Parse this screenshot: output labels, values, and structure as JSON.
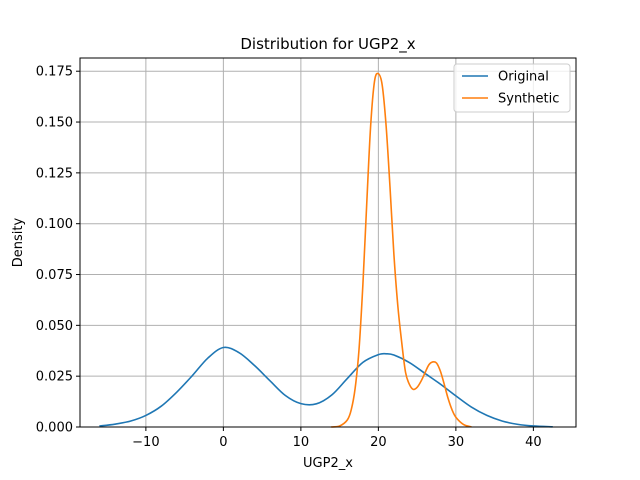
{
  "chart_data": {
    "type": "line",
    "title": "Distribution for UGP2_x",
    "xlabel": "UGP2_x",
    "ylabel": "Density",
    "xlim": [
      -18.5,
      45.5
    ],
    "ylim": [
      0,
      0.1815
    ],
    "xticks": [
      -10,
      0,
      10,
      20,
      30,
      40
    ],
    "xtick_labels": [
      "−10",
      "0",
      "10",
      "20",
      "30",
      "40"
    ],
    "yticks": [
      0.0,
      0.025,
      0.05,
      0.075,
      0.1,
      0.125,
      0.15,
      0.175
    ],
    "ytick_labels": [
      "0.000",
      "0.025",
      "0.050",
      "0.075",
      "0.100",
      "0.125",
      "0.150",
      "0.175"
    ],
    "grid": true,
    "legend_position": "top-right",
    "series": [
      {
        "name": "Original",
        "color": "#1f77b4",
        "x": [
          -16,
          -14,
          -12,
          -10,
          -8,
          -6,
          -4,
          -2,
          0,
          2,
          4,
          6,
          8,
          10,
          12,
          14,
          16,
          18,
          20,
          21,
          22,
          24,
          26,
          28,
          30,
          32,
          34,
          36,
          38,
          40,
          42.5
        ],
        "y": [
          0.0005,
          0.0014,
          0.0029,
          0.0057,
          0.0103,
          0.0172,
          0.0253,
          0.0339,
          0.0391,
          0.0366,
          0.0303,
          0.0228,
          0.0155,
          0.0115,
          0.0114,
          0.0158,
          0.0239,
          0.0318,
          0.0356,
          0.036,
          0.0354,
          0.0317,
          0.0264,
          0.0211,
          0.0153,
          0.0098,
          0.0057,
          0.0029,
          0.0013,
          0.0005,
          0.0001
        ]
      },
      {
        "name": "Synthetic",
        "color": "#ff7f0e",
        "x": [
          13.9,
          15,
          16,
          16.5,
          17,
          17.5,
          18,
          18.5,
          19,
          19.5,
          20,
          20.5,
          21,
          21.5,
          22,
          22.5,
          23,
          23.5,
          24,
          24.5,
          25,
          25.5,
          26,
          26.5,
          27,
          27.5,
          28,
          28.5,
          29,
          29.5,
          30,
          31,
          32
        ],
        "y": [
          0.0,
          0.0005,
          0.0035,
          0.0085,
          0.019,
          0.038,
          0.07,
          0.11,
          0.148,
          0.17,
          0.1738,
          0.168,
          0.148,
          0.118,
          0.085,
          0.06,
          0.042,
          0.027,
          0.021,
          0.0185,
          0.0195,
          0.0225,
          0.0265,
          0.0305,
          0.032,
          0.0315,
          0.0275,
          0.021,
          0.014,
          0.0085,
          0.0048,
          0.0012,
          0.0001
        ]
      }
    ]
  }
}
